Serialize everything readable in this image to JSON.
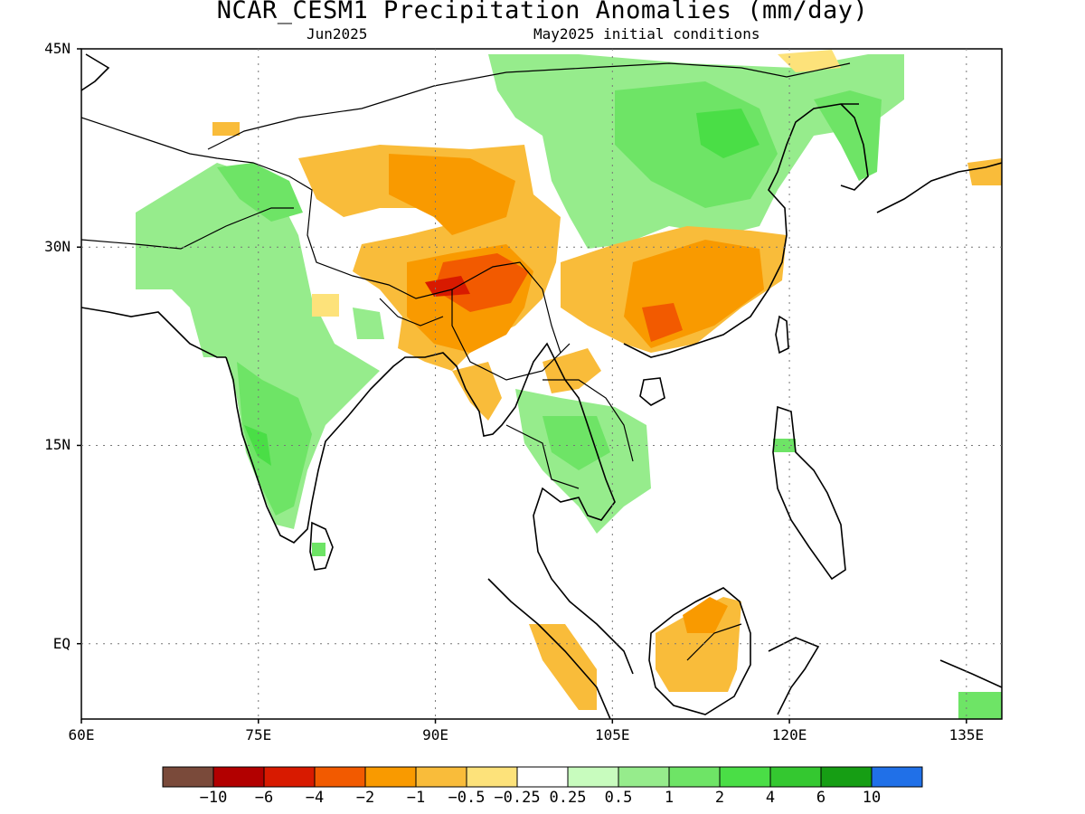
{
  "title": "NCAR_CESM1 Precipitation Anomalies (mm/day)",
  "subtitle_left": "Jun2025",
  "subtitle_right": "May2025 initial conditions",
  "lat_ticks": [
    {
      "label": "45N",
      "lat": 45
    },
    {
      "label": "30N",
      "lat": 30
    },
    {
      "label": "15N",
      "lat": 15
    },
    {
      "label": "EQ",
      "lat": 0
    }
  ],
  "lon_ticks": [
    {
      "label": "60E",
      "lon": 60
    },
    {
      "label": "75E",
      "lon": 75
    },
    {
      "label": "90E",
      "lon": 90
    },
    {
      "label": "105E",
      "lon": 105
    },
    {
      "label": "120E",
      "lon": 120
    },
    {
      "label": "135E",
      "lon": 135
    }
  ],
  "colorbar": {
    "colors": [
      "#7a4a3a",
      "#b20000",
      "#d81a00",
      "#f25a00",
      "#f99a00",
      "#f9bc3a",
      "#fde27a",
      "#ffffff",
      "#c8fcbe",
      "#96ec8c",
      "#6ee466",
      "#4ade46",
      "#34c830",
      "#169e14",
      "#2070e8"
    ],
    "labels": [
      "−10",
      "−6",
      "−4",
      "−2",
      "−1",
      "−0.5",
      "−0.25",
      "0.25",
      "0.5",
      "1",
      "2",
      "4",
      "6",
      "10"
    ]
  }
}
